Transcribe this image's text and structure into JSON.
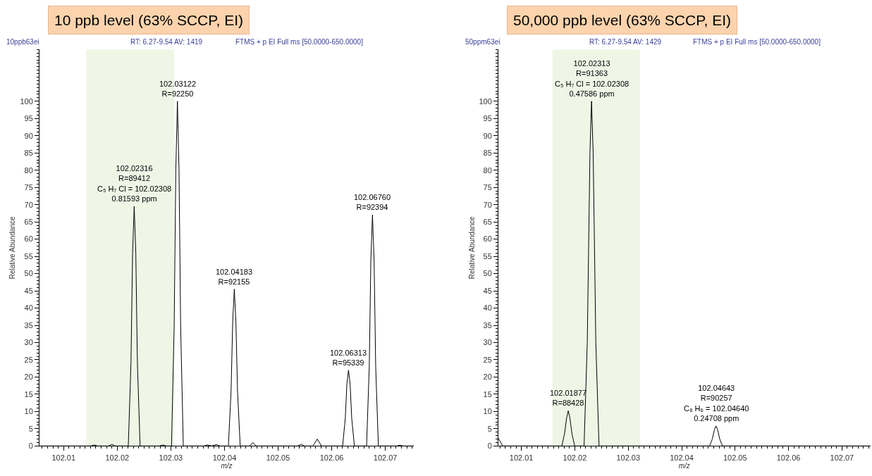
{
  "chart_data": [
    {
      "type": "line",
      "title": "10 ppb level (63% SCCP, EI)",
      "xlabel": "m/z",
      "ylabel": "Relative Abundance",
      "xlim": [
        102.0055,
        102.0753
      ],
      "xticks": [
        102.01,
        102.02,
        102.03,
        102.04,
        102.05,
        102.06,
        102.07
      ],
      "ylim": [
        0,
        115
      ],
      "yticks": [
        0,
        5,
        10,
        15,
        20,
        25,
        30,
        35,
        40,
        45,
        50,
        55,
        60,
        65,
        70,
        75,
        80,
        85,
        90,
        95,
        100
      ],
      "line_style": "solid",
      "bands": [
        {
          "axis": "x",
          "from": 102.0142,
          "to": 102.0306,
          "color": "#eff6e6"
        }
      ],
      "annotations": [
        "10ppb63ei",
        "RT: 6.27-9.54 AV: 1419",
        "FTMS + p EI Full ms [50.0000-650.0000]",
        {
          "text": "102.02316\nR=89412\nC₅ H₇ Cl = 102.02308\n0.81593 ppm",
          "x": 102.02316,
          "y": 69.5
        },
        {
          "text": "102.03122\nR=92250",
          "x": 102.03122,
          "y": 100
        },
        {
          "text": "102.04183\nR=92155",
          "x": 102.04183,
          "y": 45.5
        },
        {
          "text": "102.06313\nR=95339",
          "x": 102.06313,
          "y": 22
        },
        {
          "text": "102.06760\nR=92394",
          "x": 102.0676,
          "y": 67
        }
      ],
      "series": [
        {
          "color": "#000000",
          "x": [
            102.0055,
            102.0151,
            102.0157,
            102.0163,
            102.0184,
            102.019,
            102.0196,
            102.02206,
            102.02256,
            102.02286,
            102.02316,
            102.02346,
            102.02376,
            102.02426,
            102.0279,
            102.0285,
            102.0291,
            102.03012,
            102.03062,
            102.03092,
            102.03122,
            102.03152,
            102.03182,
            102.03232,
            102.0362,
            102.0368,
            102.0376,
            102.0385,
            102.0391,
            102.04073,
            102.04123,
            102.04153,
            102.04183,
            102.04213,
            102.04243,
            102.04293,
            102.0447,
            102.0453,
            102.0459,
            102.0537,
            102.0543,
            102.0549,
            102.0565,
            102.0573,
            102.0581,
            102.06203,
            102.06253,
            102.06283,
            102.06313,
            102.06343,
            102.06373,
            102.06423,
            102.0665,
            102.067,
            102.0673,
            102.0676,
            102.0679,
            102.0682,
            102.0687,
            102.0721,
            102.0727,
            102.0733,
            102.0753
          ],
          "values": [
            0,
            0,
            0.3,
            0,
            0,
            0.5,
            0,
            0,
            24,
            56,
            69.5,
            56,
            24,
            0,
            0,
            0.3,
            0,
            0,
            35,
            80,
            100,
            80,
            35,
            0,
            0,
            0.3,
            0,
            0.4,
            0,
            0,
            16,
            36,
            45.5,
            36,
            16,
            0,
            0,
            1.0,
            0,
            0,
            0.5,
            0,
            0,
            2.0,
            0,
            0,
            8,
            18,
            22,
            18,
            8,
            0,
            0,
            23,
            54,
            67,
            54,
            23,
            0,
            0,
            0.2,
            0,
            0
          ]
        }
      ]
    },
    {
      "type": "line",
      "title": "50,000 ppb level (63% SCCP, EI)",
      "xlabel": "m/z",
      "ylabel": "Relative Abundance",
      "xlim": [
        102.0057,
        102.0753
      ],
      "xticks": [
        102.01,
        102.02,
        102.03,
        102.04,
        102.05,
        102.06,
        102.07
      ],
      "ylim": [
        0,
        115
      ],
      "yticks": [
        0,
        5,
        10,
        15,
        20,
        25,
        30,
        35,
        40,
        45,
        50,
        55,
        60,
        65,
        70,
        75,
        80,
        85,
        90,
        95,
        100
      ],
      "line_style": "solid",
      "bands": [
        {
          "axis": "x",
          "from": 102.0158,
          "to": 102.0322,
          "color": "#eff6e6"
        }
      ],
      "annotations": [
        "50ppm63ei",
        "RT: 6.27-9.54 AV: 1429",
        "FTMS + p EI Full ms [50.0000-650.0000]",
        {
          "text": "102.02313\nR=91363\nC₅ H₇ Cl = 102.02308\n0.47586 ppm",
          "x": 102.02313,
          "y": 100
        },
        {
          "text": "102.01877\nR=88428",
          "x": 102.01877,
          "y": 10.2
        },
        {
          "text": "102.04643\nR=90257\nC₈ H₆ = 102.04640\n0.24708 ppm",
          "x": 102.04643,
          "y": 5.8
        }
      ],
      "series": [
        {
          "color": "#000000",
          "x": [
            102.0057,
            102.0065,
            102.01757,
            102.01807,
            102.01847,
            102.01877,
            102.01907,
            102.01947,
            102.01997,
            102.02173,
            102.02233,
            102.02283,
            102.02313,
            102.02343,
            102.02393,
            102.02453,
            102.04523,
            102.04573,
            102.04613,
            102.04643,
            102.04673,
            102.04713,
            102.04763,
            102.0753
          ],
          "values": [
            2.2,
            0,
            0,
            3.5,
            8.2,
            10.2,
            8.2,
            3.5,
            0,
            0,
            30,
            85,
            100,
            85,
            30,
            0,
            0,
            2,
            4.7,
            5.8,
            4.7,
            2,
            0,
            0
          ]
        }
      ]
    }
  ]
}
